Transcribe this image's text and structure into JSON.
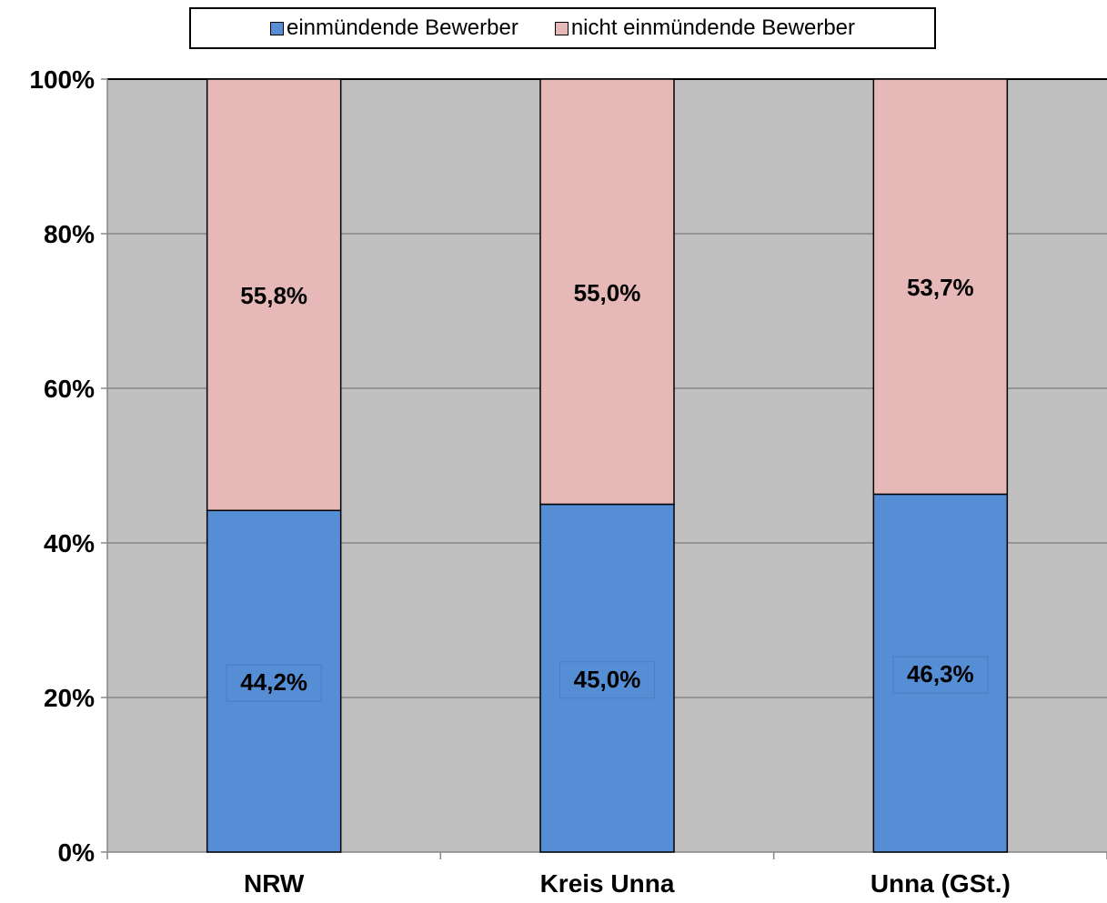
{
  "chart_data": {
    "type": "bar",
    "stacked": true,
    "title": "",
    "xlabel": "",
    "ylabel": "",
    "ylim": [
      0,
      100
    ],
    "y_tick_labels": [
      "0%",
      "20%",
      "40%",
      "60%",
      "80%",
      "100%"
    ],
    "y_ticks": [
      0,
      20,
      40,
      60,
      80,
      100
    ],
    "grid": true,
    "legend_position": "top",
    "categories": [
      "NRW",
      "Kreis Unna",
      "Unna (GSt.)"
    ],
    "series": [
      {
        "name": "einmündende Bewerber",
        "color": "#558ed5",
        "values": [
          44.2,
          45.0,
          46.3
        ],
        "labels": [
          "44,2%",
          "45,0%",
          "46,3%"
        ]
      },
      {
        "name": "nicht einmündende Bewerber",
        "color": "#e6b9b8",
        "values": [
          55.8,
          55.0,
          53.7
        ],
        "labels": [
          "55,8%",
          "55,0%",
          "53,7%"
        ]
      }
    ],
    "plot_background": "#c0c0c0",
    "gridline_color": "#868686"
  }
}
